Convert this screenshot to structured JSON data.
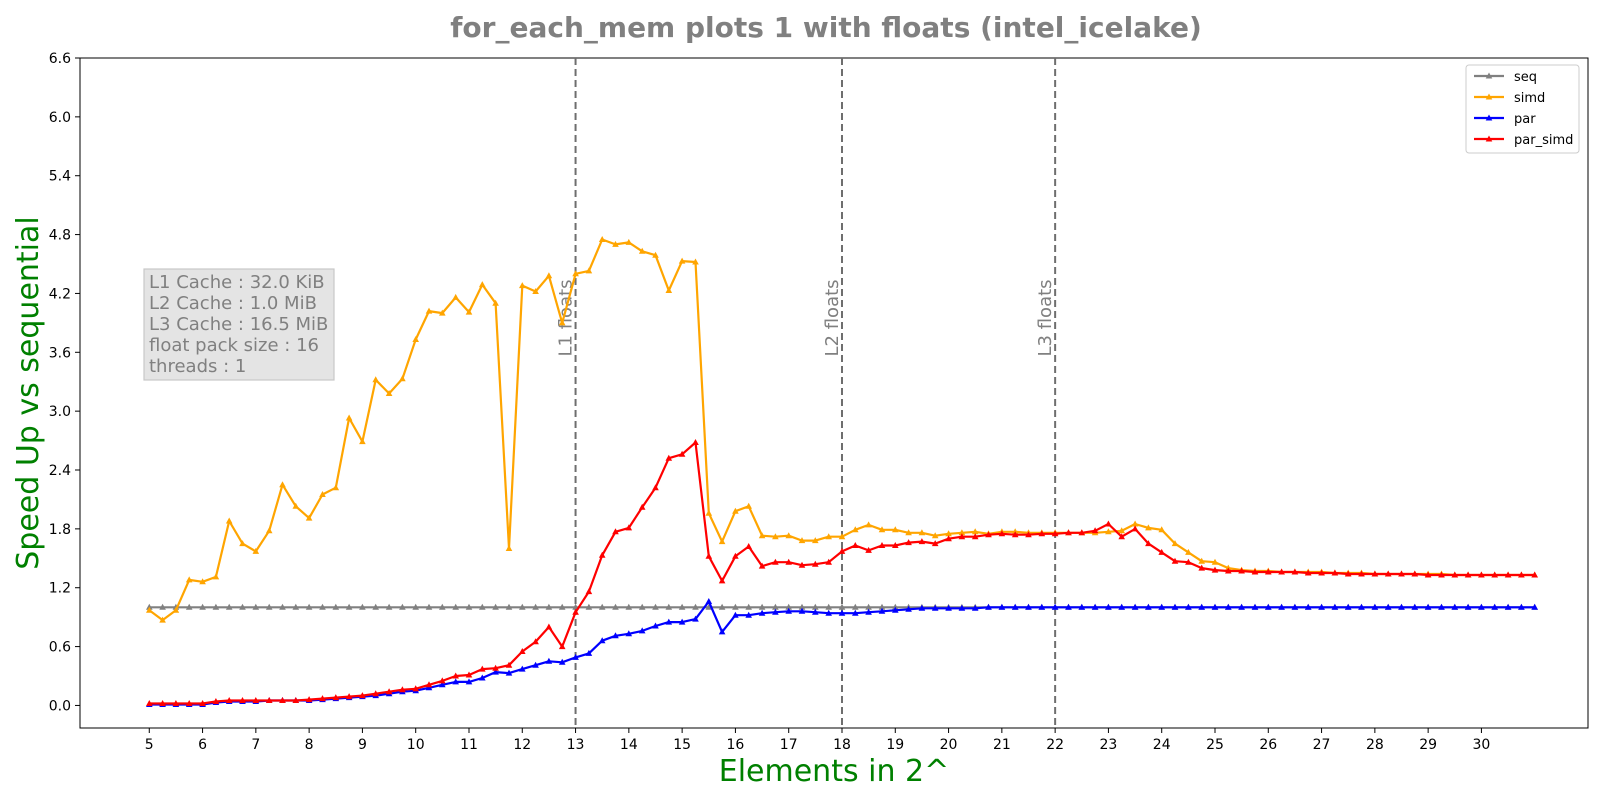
{
  "chart_data": {
    "type": "line",
    "title": "for_each_mem plots 1 with floats  (intel_icelake)",
    "xlabel": "Elements in 2^",
    "ylabel": "Speed Up vs sequential",
    "xlim": [
      3.7,
      32.0
    ],
    "ylim": [
      -0.23,
      6.6
    ],
    "x_ticks": [
      "5",
      "6",
      "7",
      "8",
      "9",
      "10",
      "11",
      "12",
      "13",
      "14",
      "15",
      "16",
      "17",
      "18",
      "19",
      "20",
      "21",
      "22",
      "23",
      "24",
      "25",
      "26",
      "27",
      "28",
      "29",
      "30"
    ],
    "y_ticks": [
      "0.0",
      "0.6",
      "1.2",
      "1.8",
      "2.4",
      "3.0",
      "3.6",
      "4.2",
      "4.8",
      "5.4",
      "6.0",
      "6.6"
    ],
    "legend_position": "top-right",
    "grid": false,
    "vertical_lines": [
      {
        "x": 13,
        "label": "L1 floats"
      },
      {
        "x": 18,
        "label": "L2 floats"
      },
      {
        "x": 22,
        "label": "L3 floats"
      }
    ],
    "info_box": [
      "L1 Cache : 32.0 KiB",
      "L2 Cache : 1.0 MiB",
      "L3 Cache : 16.5 MiB",
      "float pack size : 16",
      "threads : 1"
    ],
    "x_start": 5,
    "x_step": 0.25,
    "series": [
      {
        "name": "seq",
        "color": "#808080",
        "values": [
          1.0,
          1.0,
          1.0,
          1.0,
          1.0,
          1.0,
          1.0,
          1.0,
          1.0,
          1.0,
          1.0,
          1.0,
          1.0,
          1.0,
          1.0,
          1.0,
          1.0,
          1.0,
          1.0,
          1.0,
          1.0,
          1.0,
          1.0,
          1.0,
          1.0,
          1.0,
          1.0,
          1.0,
          1.0,
          1.0,
          1.0,
          1.0,
          1.0,
          1.0,
          1.0,
          1.0,
          1.0,
          1.0,
          1.0,
          1.0,
          1.0,
          1.0,
          1.0,
          1.0,
          1.0,
          1.0,
          1.0,
          1.0,
          1.0,
          1.0,
          1.0,
          1.0,
          1.0,
          1.0,
          1.0,
          1.0,
          1.0,
          1.0,
          1.0,
          1.0,
          1.0,
          1.0,
          1.0,
          1.0,
          1.0,
          1.0,
          1.0,
          1.0,
          1.0,
          1.0,
          1.0,
          1.0,
          1.0,
          1.0,
          1.0,
          1.0,
          1.0,
          1.0,
          1.0,
          1.0,
          1.0,
          1.0,
          1.0,
          1.0,
          1.0,
          1.0,
          1.0,
          1.0,
          1.0,
          1.0,
          1.0,
          1.0,
          1.0,
          1.0,
          1.0,
          1.0,
          1.0,
          1.0,
          1.0,
          1.0,
          1.0,
          1.0,
          1.0,
          1.0,
          1.0
        ]
      },
      {
        "name": "simd",
        "color": "#FFA500",
        "values": [
          0.97,
          0.87,
          0.97,
          1.28,
          1.26,
          1.31,
          1.88,
          1.65,
          1.57,
          1.78,
          2.25,
          2.03,
          1.91,
          2.15,
          2.22,
          2.93,
          2.69,
          3.32,
          3.18,
          3.33,
          3.73,
          4.02,
          4.0,
          4.16,
          4.01,
          4.29,
          4.1,
          1.6,
          4.28,
          4.22,
          4.38,
          3.9,
          4.4,
          4.43,
          4.75,
          4.7,
          4.72,
          4.63,
          4.59,
          4.23,
          4.53,
          4.52,
          1.96,
          1.67,
          1.98,
          2.03,
          1.73,
          1.72,
          1.73,
          1.68,
          1.68,
          1.72,
          1.72,
          1.79,
          1.84,
          1.79,
          1.79,
          1.76,
          1.76,
          1.73,
          1.75,
          1.76,
          1.77,
          1.75,
          1.77,
          1.77,
          1.76,
          1.76,
          1.76,
          1.76,
          1.76,
          1.76,
          1.77,
          1.78,
          1.85,
          1.81,
          1.79,
          1.65,
          1.56,
          1.47,
          1.46,
          1.4,
          1.38,
          1.37,
          1.37,
          1.36,
          1.36,
          1.36,
          1.36,
          1.35,
          1.35,
          1.35,
          1.34,
          1.34,
          1.34,
          1.34,
          1.34,
          1.34,
          1.33,
          1.33,
          1.33,
          1.33,
          1.33,
          1.33,
          1.33
        ]
      },
      {
        "name": "par",
        "color": "#0000FF",
        "values": [
          0.01,
          0.01,
          0.01,
          0.01,
          0.01,
          0.03,
          0.04,
          0.04,
          0.04,
          0.05,
          0.05,
          0.05,
          0.05,
          0.06,
          0.07,
          0.08,
          0.09,
          0.1,
          0.12,
          0.14,
          0.15,
          0.18,
          0.21,
          0.24,
          0.24,
          0.28,
          0.34,
          0.33,
          0.37,
          0.41,
          0.45,
          0.44,
          0.49,
          0.53,
          0.66,
          0.71,
          0.73,
          0.76,
          0.81,
          0.85,
          0.85,
          0.88,
          1.06,
          0.75,
          0.92,
          0.92,
          0.94,
          0.95,
          0.96,
          0.96,
          0.95,
          0.94,
          0.94,
          0.94,
          0.95,
          0.96,
          0.97,
          0.98,
          0.99,
          0.99,
          0.99,
          0.99,
          0.99,
          1.0,
          1.0,
          1.0,
          1.0,
          1.0,
          1.0,
          1.0,
          1.0,
          1.0,
          1.0,
          1.0,
          1.0,
          1.0,
          1.0,
          1.0,
          1.0,
          1.0,
          1.0,
          1.0,
          1.0,
          1.0,
          1.0,
          1.0,
          1.0,
          1.0,
          1.0,
          1.0,
          1.0,
          1.0,
          1.0,
          1.0,
          1.0,
          1.0,
          1.0,
          1.0,
          1.0,
          1.0,
          1.0,
          1.0,
          1.0,
          1.0,
          1.0
        ]
      },
      {
        "name": "par_simd",
        "color": "#FF0000",
        "values": [
          0.02,
          0.02,
          0.02,
          0.02,
          0.02,
          0.04,
          0.05,
          0.05,
          0.05,
          0.05,
          0.05,
          0.05,
          0.06,
          0.07,
          0.08,
          0.09,
          0.1,
          0.12,
          0.14,
          0.16,
          0.17,
          0.21,
          0.25,
          0.3,
          0.31,
          0.37,
          0.38,
          0.41,
          0.55,
          0.65,
          0.8,
          0.6,
          0.95,
          1.16,
          1.53,
          1.77,
          1.81,
          2.02,
          2.22,
          2.52,
          2.56,
          2.68,
          1.52,
          1.27,
          1.52,
          1.62,
          1.42,
          1.46,
          1.46,
          1.43,
          1.44,
          1.46,
          1.57,
          1.63,
          1.58,
          1.63,
          1.63,
          1.66,
          1.67,
          1.65,
          1.7,
          1.72,
          1.72,
          1.74,
          1.75,
          1.74,
          1.74,
          1.75,
          1.75,
          1.76,
          1.76,
          1.78,
          1.85,
          1.72,
          1.8,
          1.65,
          1.56,
          1.47,
          1.46,
          1.4,
          1.38,
          1.37,
          1.37,
          1.36,
          1.36,
          1.36,
          1.36,
          1.35,
          1.35,
          1.35,
          1.34,
          1.34,
          1.34,
          1.34,
          1.34,
          1.34,
          1.33,
          1.33,
          1.33,
          1.33,
          1.33,
          1.33,
          1.33,
          1.33,
          1.33
        ]
      }
    ]
  }
}
